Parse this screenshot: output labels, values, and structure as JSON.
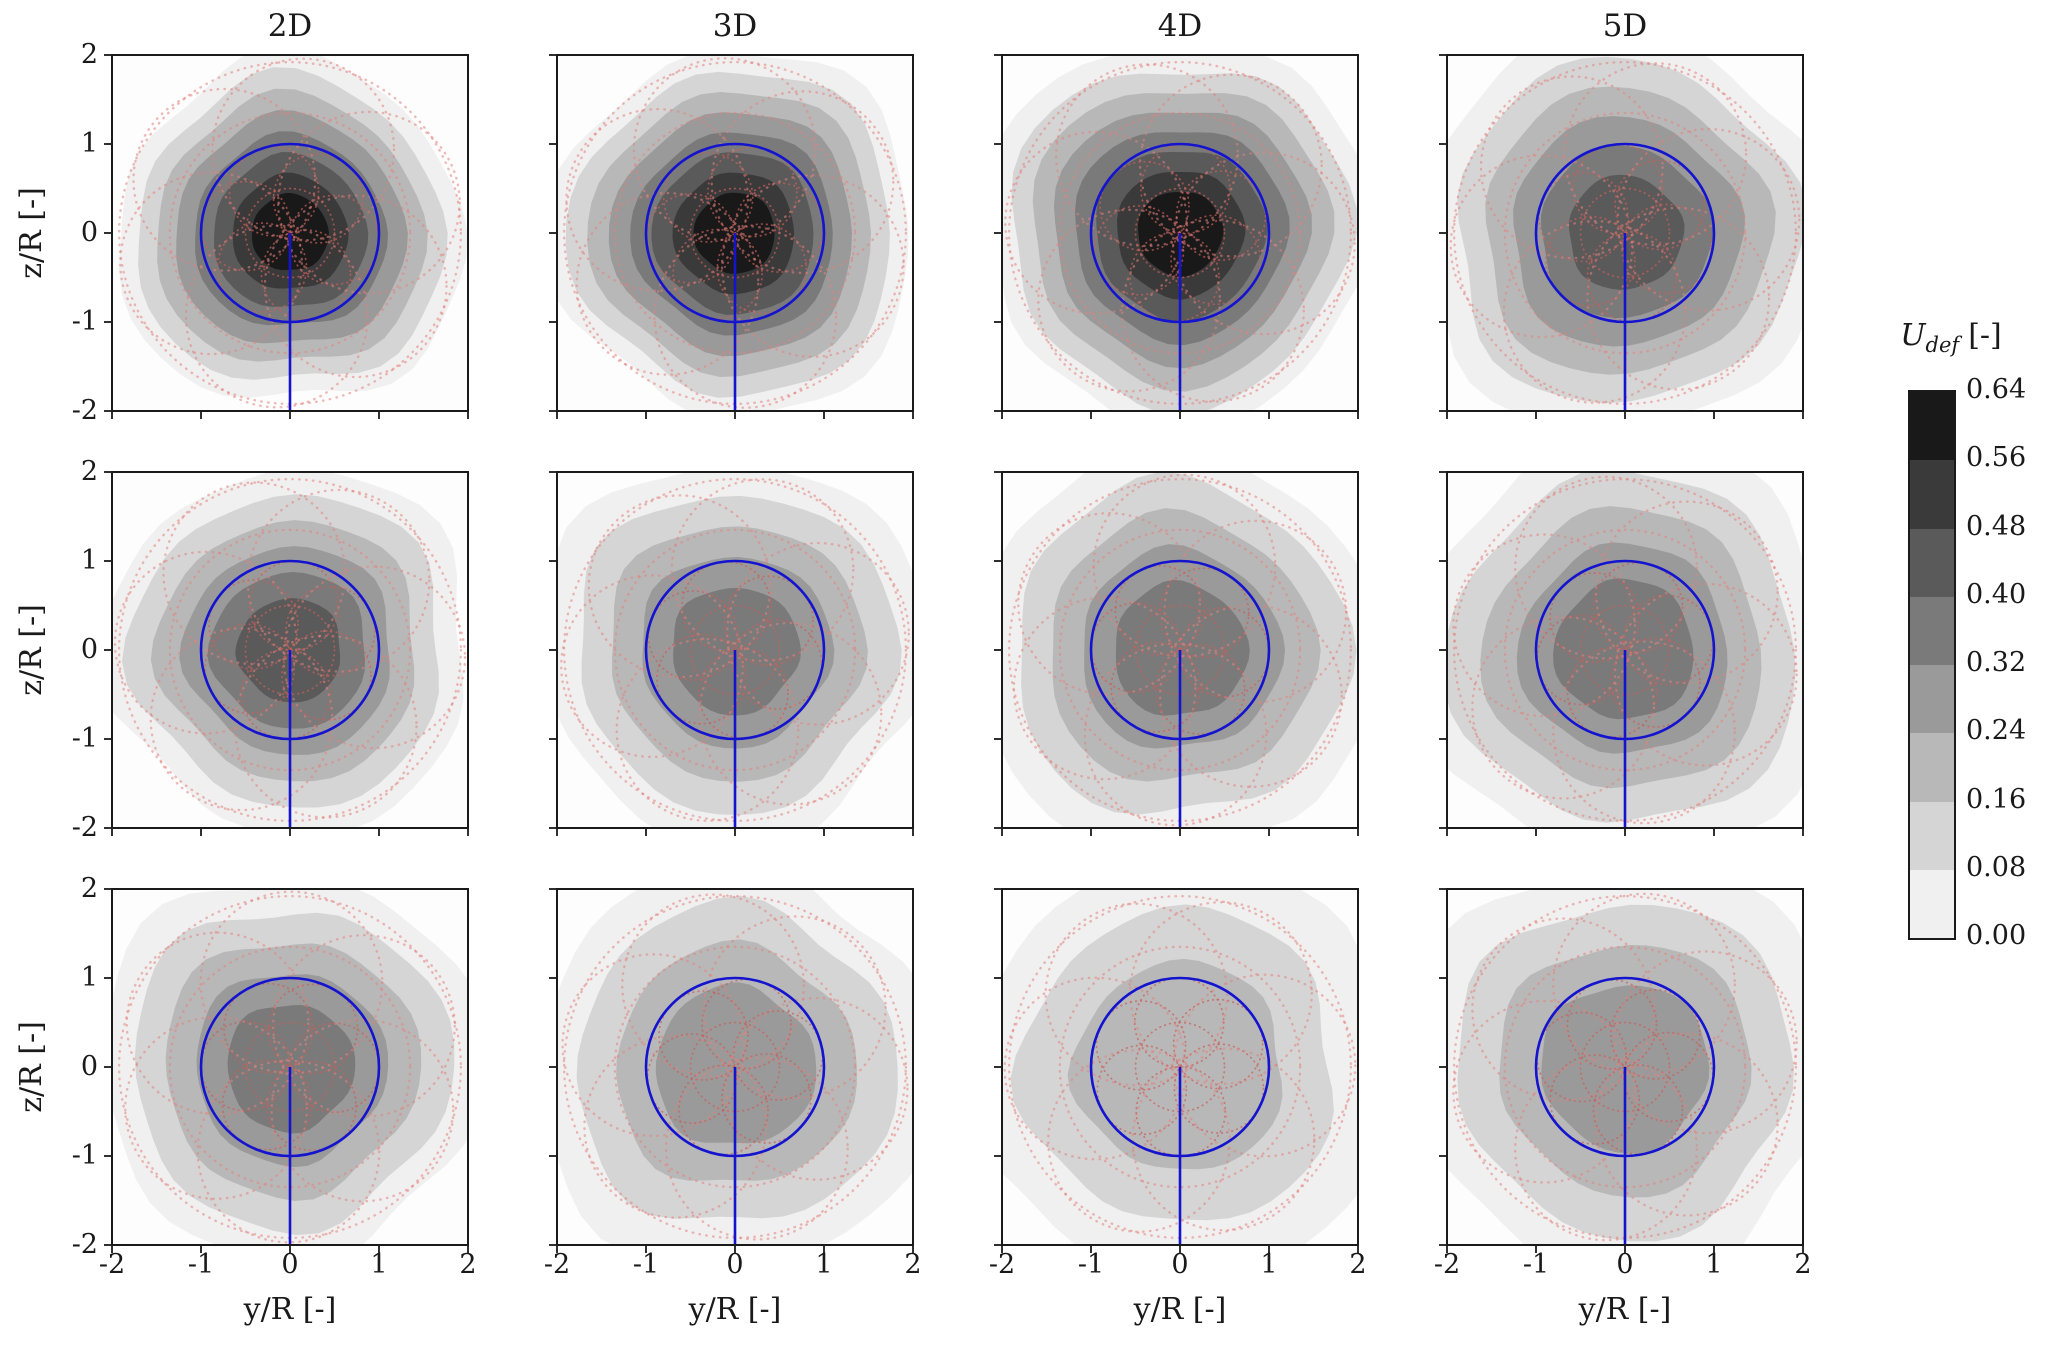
{
  "figure": {
    "background": "#ffffff"
  },
  "chart_data": {
    "type": "heatmap",
    "subtype": "contour-grid",
    "description": "3x4 grid of wake velocity-deficit contour maps at downstream distances 2D-5D, with rotor circle, tower line and measurement-point rosette overlays",
    "columns": [
      "2D",
      "3D",
      "4D",
      "5D"
    ],
    "n_rows": 3,
    "xlabel": "y/R [-]",
    "ylabel": "z/R [-]",
    "xlim": [
      -2,
      2
    ],
    "ylim": [
      -2,
      2
    ],
    "xticks": [
      -2,
      -1,
      0,
      1,
      2
    ],
    "yticks": [
      2,
      1,
      0,
      -1,
      -2
    ],
    "grid": false,
    "rotor": {
      "radius": 1.0,
      "center": [
        0,
        0
      ],
      "color": "#1414cf",
      "tower_bottom": -2
    },
    "overlay_points_color": "#e2837d",
    "colorbar": {
      "label_base": "U",
      "label_sub": "def",
      "label_unit": "[-]",
      "position": "right",
      "level_step": 0.08,
      "vmin": 0.0,
      "vmax": 0.64,
      "ticks": [
        "0.64",
        "0.56",
        "0.48",
        "0.40",
        "0.32",
        "0.24",
        "0.16",
        "0.08",
        "0.00"
      ],
      "cmap_low": "#fbfbfb",
      "cmap_high": "#0d0d0d"
    },
    "panels": [
      {
        "row": 0,
        "col": 0,
        "peak": 0.64,
        "spread": 0.95,
        "seed": 3
      },
      {
        "row": 0,
        "col": 1,
        "peak": 0.64,
        "spread": 1.0,
        "seed": 11
      },
      {
        "row": 0,
        "col": 2,
        "peak": 0.64,
        "spread": 1.05,
        "seed": 19
      },
      {
        "row": 0,
        "col": 3,
        "peak": 0.48,
        "spread": 1.1,
        "seed": 27
      },
      {
        "row": 1,
        "col": 0,
        "peak": 0.48,
        "spread": 1.0,
        "seed": 5
      },
      {
        "row": 1,
        "col": 1,
        "peak": 0.4,
        "spread": 1.05,
        "seed": 13
      },
      {
        "row": 1,
        "col": 2,
        "peak": 0.4,
        "spread": 1.1,
        "seed": 21
      },
      {
        "row": 1,
        "col": 3,
        "peak": 0.4,
        "spread": 1.15,
        "seed": 29
      },
      {
        "row": 2,
        "col": 0,
        "peak": 0.4,
        "spread": 1.05,
        "seed": 7
      },
      {
        "row": 2,
        "col": 1,
        "peak": 0.32,
        "spread": 1.1,
        "seed": 15
      },
      {
        "row": 2,
        "col": 2,
        "peak": 0.24,
        "spread": 1.15,
        "seed": 23
      },
      {
        "row": 2,
        "col": 3,
        "peak": 0.32,
        "spread": 1.15,
        "seed": 31
      }
    ]
  }
}
